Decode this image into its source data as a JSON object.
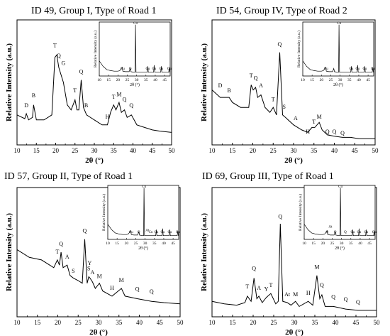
{
  "panels": [
    {
      "title": "ID 49, Group I, Type of Road 1",
      "ylabel": "Relative Intensity (a.u.)",
      "xlabel": "2θ (°)",
      "xticks": [
        10,
        15,
        20,
        25,
        30,
        35,
        40,
        45,
        50
      ],
      "xlim": [
        10,
        50
      ],
      "inset": {
        "ylabel": "Relative Intensity (a.u.)",
        "xlabel": "2θ (°)",
        "xticks": [
          10,
          15,
          20,
          25,
          30,
          35,
          40,
          45
        ],
        "xlim": [
          10,
          48
        ],
        "labels": [
          {
            "t": "Cu",
            "x": 22.5,
            "y": 0.12
          },
          {
            "t": "Q",
            "x": 26.6,
            "y": 0.12
          },
          {
            "t": "Cu",
            "x": 29.4,
            "y": 0.96
          },
          {
            "t": "Cu",
            "x": 36.0,
            "y": 0.12
          },
          {
            "t": "Cu",
            "x": 39.4,
            "y": 0.12
          },
          {
            "t": "Cu",
            "x": 43.2,
            "y": 0.12
          },
          {
            "t": "Cu",
            "x": 47.5,
            "y": 0.12
          }
        ]
      },
      "labels": [
        {
          "t": "D",
          "x": 12.4,
          "y": 0.3
        },
        {
          "t": "B",
          "x": 14.3,
          "y": 0.38
        },
        {
          "t": "T",
          "x": 19.8,
          "y": 0.78
        },
        {
          "t": "Q",
          "x": 20.8,
          "y": 0.7
        },
        {
          "t": "G",
          "x": 22.0,
          "y": 0.64
        },
        {
          "t": "Q",
          "x": 26.6,
          "y": 0.57
        },
        {
          "t": "T",
          "x": 25.0,
          "y": 0.42
        },
        {
          "t": "B",
          "x": 27.9,
          "y": 0.3
        },
        {
          "t": "H",
          "x": 33.4,
          "y": 0.21
        },
        {
          "t": "T",
          "x": 35.0,
          "y": 0.37
        },
        {
          "t": "M",
          "x": 36.4,
          "y": 0.39
        },
        {
          "t": "Q",
          "x": 37.8,
          "y": 0.35
        },
        {
          "t": "Q",
          "x": 39.6,
          "y": 0.3
        }
      ]
    },
    {
      "title": "ID 54, Group IV, Type of Road 2",
      "ylabel": "Relative Intensity (a.u.)",
      "xlabel": "2θ (°)",
      "xticks": [
        10,
        15,
        20,
        25,
        30,
        35,
        40,
        45,
        50
      ],
      "xlim": [
        10,
        50
      ],
      "inset": {
        "ylabel": "Relative Intensity (a.u.)",
        "xlabel": "2θ (°)",
        "xticks": [
          10,
          15,
          20,
          25,
          30,
          35,
          40,
          45
        ],
        "xlim": [
          10,
          48
        ],
        "labels": [
          {
            "t": "Cu",
            "x": 22.5,
            "y": 0.12
          },
          {
            "t": "Cu",
            "x": 29.4,
            "y": 0.96
          },
          {
            "t": "Cu",
            "x": 36.0,
            "y": 0.12
          },
          {
            "t": "Cu",
            "x": 39.4,
            "y": 0.12
          },
          {
            "t": "Cu",
            "x": 43.2,
            "y": 0.12
          },
          {
            "t": "Cu",
            "x": 47.5,
            "y": 0.12
          }
        ]
      },
      "labels": [
        {
          "t": "D",
          "x": 12.0,
          "y": 0.46
        },
        {
          "t": "B",
          "x": 14.2,
          "y": 0.42
        },
        {
          "t": "T",
          "x": 19.6,
          "y": 0.54
        },
        {
          "t": "Q",
          "x": 20.7,
          "y": 0.52
        },
        {
          "t": "A",
          "x": 22.0,
          "y": 0.46
        },
        {
          "t": "Q",
          "x": 26.6,
          "y": 0.79
        },
        {
          "t": "T",
          "x": 25.0,
          "y": 0.35
        },
        {
          "t": "S",
          "x": 27.7,
          "y": 0.29
        },
        {
          "t": "A",
          "x": 30.5,
          "y": 0.2
        },
        {
          "t": "H",
          "x": 33.5,
          "y": 0.09
        },
        {
          "t": "T",
          "x": 35.0,
          "y": 0.17
        },
        {
          "t": "M",
          "x": 36.3,
          "y": 0.21
        },
        {
          "t": "Q",
          "x": 38.3,
          "y": 0.09
        },
        {
          "t": "Q",
          "x": 40.0,
          "y": 0.09
        },
        {
          "t": "Q",
          "x": 42.0,
          "y": 0.08
        }
      ]
    },
    {
      "title": "ID 57, Group II, Type of Road 1",
      "ylabel": "Relative Intensity (a.u.)",
      "xlabel": "2θ (°)",
      "xticks": [
        10,
        15,
        20,
        25,
        30,
        35,
        40,
        45,
        50
      ],
      "xlim": [
        10,
        50
      ],
      "inset": {
        "ylabel": "Relative Intensity (a.u.)",
        "xlabel": "2θ (°)",
        "xticks": [
          10,
          15,
          20,
          25,
          30,
          35,
          40,
          45
        ],
        "xlim": [
          10,
          48
        ],
        "labels": [
          {
            "t": "Cu",
            "x": 22.5,
            "y": 0.12
          },
          {
            "t": "Q",
            "x": 26.6,
            "y": 0.12
          },
          {
            "t": "Cu",
            "x": 29.4,
            "y": 0.96
          },
          {
            "t": "At",
            "x": 31.2,
            "y": 0.15
          },
          {
            "t": "Cu",
            "x": 33.0,
            "y": 0.12
          },
          {
            "t": "Cu",
            "x": 36.0,
            "y": 0.12
          },
          {
            "t": "Cu",
            "x": 39.4,
            "y": 0.12
          },
          {
            "t": "Cu",
            "x": 43.2,
            "y": 0.12
          },
          {
            "t": "Cu",
            "x": 47.5,
            "y": 0.12
          }
        ]
      },
      "labels": [
        {
          "t": "T",
          "x": 19.9,
          "y": 0.49
        },
        {
          "t": "Q",
          "x": 20.8,
          "y": 0.55
        },
        {
          "t": "A",
          "x": 22.3,
          "y": 0.45
        },
        {
          "t": "S",
          "x": 23.8,
          "y": 0.34
        },
        {
          "t": "Q",
          "x": 26.6,
          "y": 0.65
        },
        {
          "t": "S",
          "x": 27.6,
          "y": 0.36
        },
        {
          "t": "Y",
          "x": 27.8,
          "y": 0.4
        },
        {
          "t": "A",
          "x": 28.5,
          "y": 0.33
        },
        {
          "t": "M",
          "x": 30.2,
          "y": 0.3
        },
        {
          "t": "H",
          "x": 33.3,
          "y": 0.21
        },
        {
          "t": "M",
          "x": 35.6,
          "y": 0.27
        },
        {
          "t": "Q",
          "x": 39.5,
          "y": 0.2
        },
        {
          "t": "Q",
          "x": 43.0,
          "y": 0.18
        }
      ]
    },
    {
      "title": "ID 69, Group III, Type of Road 1",
      "ylabel": "Relative Intensity (a.u.)",
      "xlabel": "2θ (°)",
      "xticks": [
        10,
        15,
        20,
        25,
        30,
        35,
        40,
        45,
        50
      ],
      "xlim": [
        10,
        50
      ],
      "inset": {
        "ylabel": "Relative Intensity (a.u.)",
        "xlabel": "2θ (°)",
        "xticks": [
          10,
          15,
          20,
          25,
          30,
          35,
          40,
          45
        ],
        "xlim": [
          10,
          48
        ],
        "labels": [
          {
            "t": "At",
            "x": 24.0,
            "y": 0.22
          },
          {
            "t": "Q",
            "x": 22.3,
            "y": 0.12
          },
          {
            "t": "Q",
            "x": 26.6,
            "y": 0.12
          },
          {
            "t": "Cu",
            "x": 29.4,
            "y": 0.96
          },
          {
            "t": "Q",
            "x": 32.0,
            "y": 0.12
          },
          {
            "t": "Cu",
            "x": 36.0,
            "y": 0.12
          },
          {
            "t": "Cu",
            "x": 39.4,
            "y": 0.12
          },
          {
            "t": "Cu",
            "x": 43.2,
            "y": 0.12
          },
          {
            "t": "Cu",
            "x": 47.5,
            "y": 0.12
          }
        ]
      },
      "labels": [
        {
          "t": "Q",
          "x": 20.2,
          "y": 0.36
        },
        {
          "t": "T",
          "x": 18.6,
          "y": 0.22
        },
        {
          "t": "A",
          "x": 21.4,
          "y": 0.21
        },
        {
          "t": "Y",
          "x": 23.2,
          "y": 0.2
        },
        {
          "t": "T",
          "x": 24.3,
          "y": 0.23
        },
        {
          "t": "Q",
          "x": 26.6,
          "y": 0.76
        },
        {
          "t": "At",
          "x": 28.3,
          "y": 0.16
        },
        {
          "t": "M",
          "x": 30.3,
          "y": 0.16
        },
        {
          "t": "H",
          "x": 33.4,
          "y": 0.17
        },
        {
          "t": "M",
          "x": 35.5,
          "y": 0.37
        },
        {
          "t": "Q",
          "x": 36.7,
          "y": 0.23
        },
        {
          "t": "Q",
          "x": 39.5,
          "y": 0.14
        },
        {
          "t": "Q",
          "x": 42.5,
          "y": 0.12
        },
        {
          "t": "Q",
          "x": 45.5,
          "y": 0.1
        }
      ]
    }
  ],
  "chart_data": [
    {
      "type": "line",
      "title": "ID 49, Group I, Type of Road 1",
      "xlabel": "2θ (°)",
      "ylabel": "Relative Intensity (a.u.)",
      "xlim": [
        10,
        50
      ],
      "series": [
        {
          "x": [
            10,
            12,
            12.4,
            13,
            14,
            14.3,
            15,
            17,
            19,
            19.8,
            20.3,
            20.8,
            21.4,
            22,
            23,
            24,
            25,
            25.5,
            26,
            26.6,
            27.2,
            28,
            30,
            32,
            33.4,
            34.2,
            35,
            35.6,
            36.4,
            37,
            37.8,
            38.5,
            39.6,
            41,
            43,
            45,
            47,
            50
          ],
          "y": [
            0.24,
            0.21,
            0.25,
            0.2,
            0.22,
            0.32,
            0.2,
            0.2,
            0.24,
            0.7,
            0.72,
            0.62,
            0.56,
            0.5,
            0.32,
            0.28,
            0.36,
            0.28,
            0.28,
            0.52,
            0.3,
            0.24,
            0.2,
            0.16,
            0.16,
            0.26,
            0.32,
            0.28,
            0.34,
            0.26,
            0.28,
            0.22,
            0.24,
            0.16,
            0.14,
            0.12,
            0.11,
            0.1
          ]
        }
      ]
    },
    {
      "type": "line",
      "title": "ID 54, Group IV, Type of Road 2",
      "xlabel": "2θ (°)",
      "ylabel": "Relative Intensity (a.u.)",
      "xlim": [
        10,
        50
      ],
      "series": [
        {
          "x": [
            10,
            12,
            13,
            14.2,
            15,
            17,
            19,
            19.6,
            20.1,
            20.7,
            21.2,
            22,
            23,
            24.2,
            25,
            25.8,
            26.6,
            27.3,
            28,
            30,
            32,
            33.5,
            34.5,
            35.2,
            36.3,
            37,
            38.3,
            40,
            42,
            44,
            46,
            48,
            50
          ],
          "y": [
            0.44,
            0.38,
            0.38,
            0.38,
            0.34,
            0.3,
            0.3,
            0.48,
            0.44,
            0.46,
            0.38,
            0.4,
            0.3,
            0.26,
            0.3,
            0.24,
            0.74,
            0.24,
            0.22,
            0.16,
            0.12,
            0.1,
            0.14,
            0.14,
            0.18,
            0.12,
            0.08,
            0.07,
            0.06,
            0.06,
            0.05,
            0.05,
            0.05
          ]
        }
      ]
    },
    {
      "type": "line",
      "title": "ID 57, Group II, Type of Road 1",
      "xlabel": "2θ (°)",
      "ylabel": "Relative Intensity (a.u.)",
      "xlim": [
        10,
        50
      ],
      "series": [
        {
          "x": [
            10,
            13,
            16,
            19,
            19.9,
            20.4,
            20.8,
            21.3,
            22.3,
            23,
            23.8,
            25,
            26,
            26.6,
            27.2,
            27.6,
            27.9,
            28.5,
            29.2,
            30.2,
            31,
            33.3,
            35.6,
            36.5,
            39.5,
            43,
            46,
            50
          ],
          "y": [
            0.52,
            0.46,
            0.44,
            0.38,
            0.44,
            0.4,
            0.5,
            0.38,
            0.4,
            0.32,
            0.3,
            0.28,
            0.26,
            0.6,
            0.26,
            0.31,
            0.3,
            0.27,
            0.22,
            0.26,
            0.2,
            0.16,
            0.22,
            0.16,
            0.14,
            0.12,
            0.11,
            0.1
          ]
        }
      ]
    },
    {
      "type": "line",
      "title": "ID 69, Group III, Type of Road 1",
      "xlabel": "2θ (°)",
      "ylabel": "Relative Intensity (a.u.)",
      "xlim": [
        10,
        50
      ],
      "series": [
        {
          "x": [
            10,
            13,
            16,
            18,
            18.6,
            19.5,
            20.2,
            20.9,
            21.4,
            22.2,
            23.2,
            24.3,
            25.5,
            26.1,
            26.6,
            27.2,
            28.3,
            29.2,
            30.3,
            31.2,
            33.4,
            34.5,
            35.5,
            36.2,
            36.7,
            37.5,
            39.5,
            42.5,
            45.5,
            48,
            50
          ],
          "y": [
            0.12,
            0.1,
            0.09,
            0.11,
            0.16,
            0.12,
            0.3,
            0.14,
            0.16,
            0.11,
            0.15,
            0.18,
            0.1,
            0.12,
            0.72,
            0.12,
            0.11,
            0.09,
            0.12,
            0.08,
            0.12,
            0.09,
            0.32,
            0.14,
            0.17,
            0.08,
            0.08,
            0.06,
            0.05,
            0.05,
            0.05
          ]
        }
      ]
    }
  ],
  "inset_spectra": {
    "x": [
      10,
      12,
      14,
      16,
      18,
      20,
      21,
      22.3,
      22.6,
      24,
      26,
      26.6,
      27,
      28.5,
      29.2,
      29.4,
      29.7,
      31,
      33,
      35.7,
      36,
      36.3,
      38,
      39.1,
      39.4,
      39.7,
      41,
      42.9,
      43.2,
      43.5,
      45,
      47.2,
      47.5,
      47.8,
      48
    ],
    "y": [
      0.28,
      0.18,
      0.12,
      0.1,
      0.09,
      0.09,
      0.1,
      0.16,
      0.09,
      0.08,
      0.08,
      0.14,
      0.08,
      0.07,
      0.07,
      0.95,
      0.07,
      0.07,
      0.07,
      0.07,
      0.18,
      0.07,
      0.07,
      0.07,
      0.2,
      0.07,
      0.07,
      0.07,
      0.18,
      0.07,
      0.07,
      0.07,
      0.16,
      0.07,
      0.07
    ]
  }
}
